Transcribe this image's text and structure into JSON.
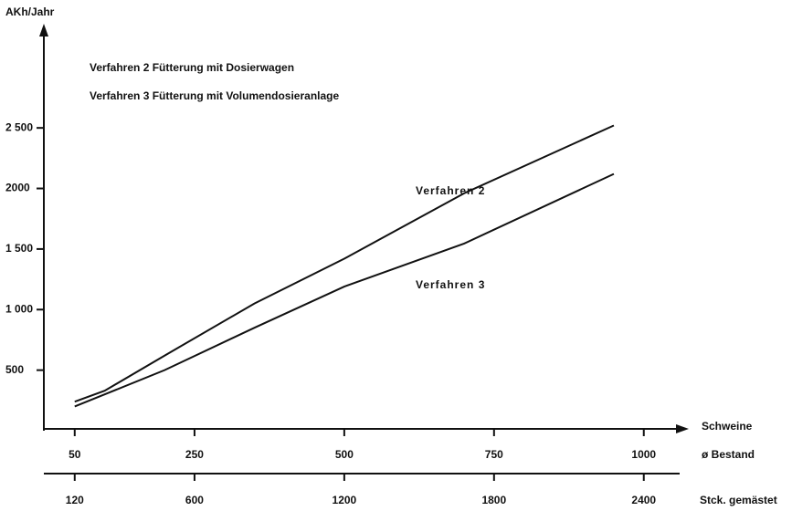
{
  "chart_data": {
    "type": "line",
    "y_label": "AKh/Jahr",
    "x_label": "Schweine",
    "x_label_2": "ø Bestand",
    "x2_label": "Stck. gemästet",
    "legend_lines": [
      "Verfahren 2 Fütterung mit Dosierwagen",
      "Verfahren 3 Fütterung mit Volumendosieranlage"
    ],
    "x": [
      50,
      100,
      200,
      350,
      500,
      700,
      950
    ],
    "series": [
      {
        "name": "Verfahren 2",
        "color": "#111111",
        "values": [
          240,
          330,
          620,
          1050,
          1420,
          1960,
          2520
        ]
      },
      {
        "name": "Verfahren 3",
        "color": "#111111",
        "values": [
          200,
          300,
          500,
          850,
          1190,
          1545,
          2120
        ]
      }
    ],
    "xlim": [
      0,
      1069
    ],
    "xticks": [
      50,
      250,
      500,
      750,
      1000
    ],
    "x2lim": [
      0,
      2565.6
    ],
    "x2ticks": [
      120,
      600,
      1200,
      1800,
      2400
    ],
    "ylim": [
      0,
      3330
    ],
    "yticks": [
      {
        "value": 500,
        "label": "500"
      },
      {
        "value": 1000,
        "label": "1 000"
      },
      {
        "value": 1500,
        "label": "1 500"
      },
      2000,
      {
        "value": 2500,
        "label": "2 500"
      }
    ],
    "grid": false
  }
}
